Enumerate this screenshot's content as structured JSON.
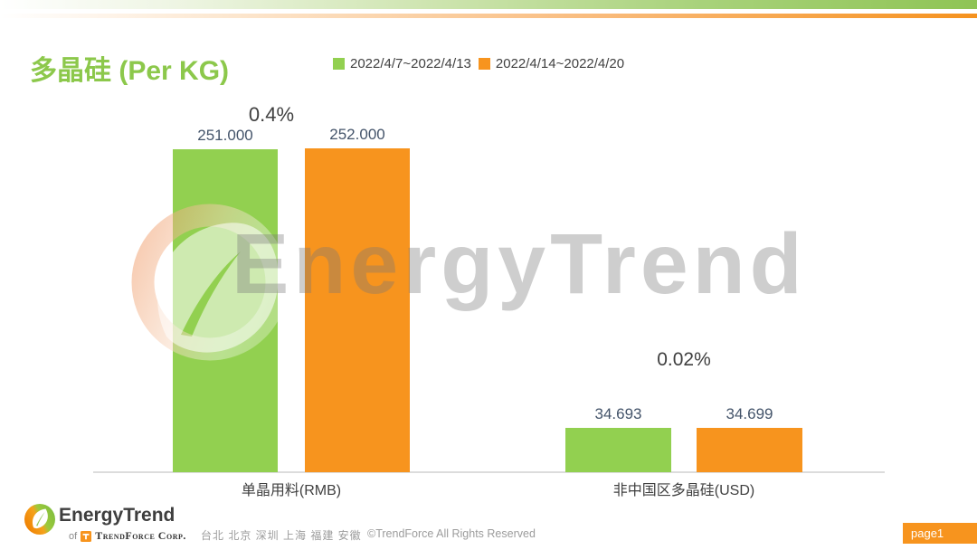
{
  "header": {
    "title": "多晶硅 (Per KG)",
    "legend": [
      {
        "label": "2022/4/7~2022/4/13",
        "color": "#92d050"
      },
      {
        "label": "2022/4/14~2022/4/20",
        "color": "#f7941e"
      }
    ]
  },
  "chart_data": {
    "type": "bar",
    "title": "多晶硅 (Per KG)",
    "categories": [
      "单晶用料(RMB)",
      "非中国区多晶硅(USD)"
    ],
    "series": [
      {
        "name": "2022/4/7~2022/4/13",
        "color": "#92d050",
        "values": [
          251.0,
          34.693
        ]
      },
      {
        "name": "2022/4/14~2022/4/20",
        "color": "#f7941e",
        "values": [
          252.0,
          34.699
        ]
      }
    ],
    "data_labels": [
      [
        "251.000",
        "252.000"
      ],
      [
        "34.693",
        "34.699"
      ]
    ],
    "change_labels": [
      "0.4%",
      "0.02%"
    ],
    "xlabel": "",
    "ylabel": "",
    "ylim": [
      0,
      260
    ],
    "grid": false,
    "legend_position": "top"
  },
  "watermark": {
    "text": "EnergyTrend"
  },
  "colors": {
    "accent_green": "#92d050",
    "accent_orange": "#f7941e",
    "title_green": "#8cc84b",
    "label_dark": "#44546a",
    "text_gray": "#9c9c9c"
  },
  "footer": {
    "logo_text": "EnergyTrend",
    "logo_sub_prefix": "of",
    "logo_sub": "TrendForce Corp.",
    "locations": "台北 北京 深圳 上海 福建 安徽",
    "copyright": "©TrendForce All Rights Reserved",
    "page_badge": "page1"
  }
}
